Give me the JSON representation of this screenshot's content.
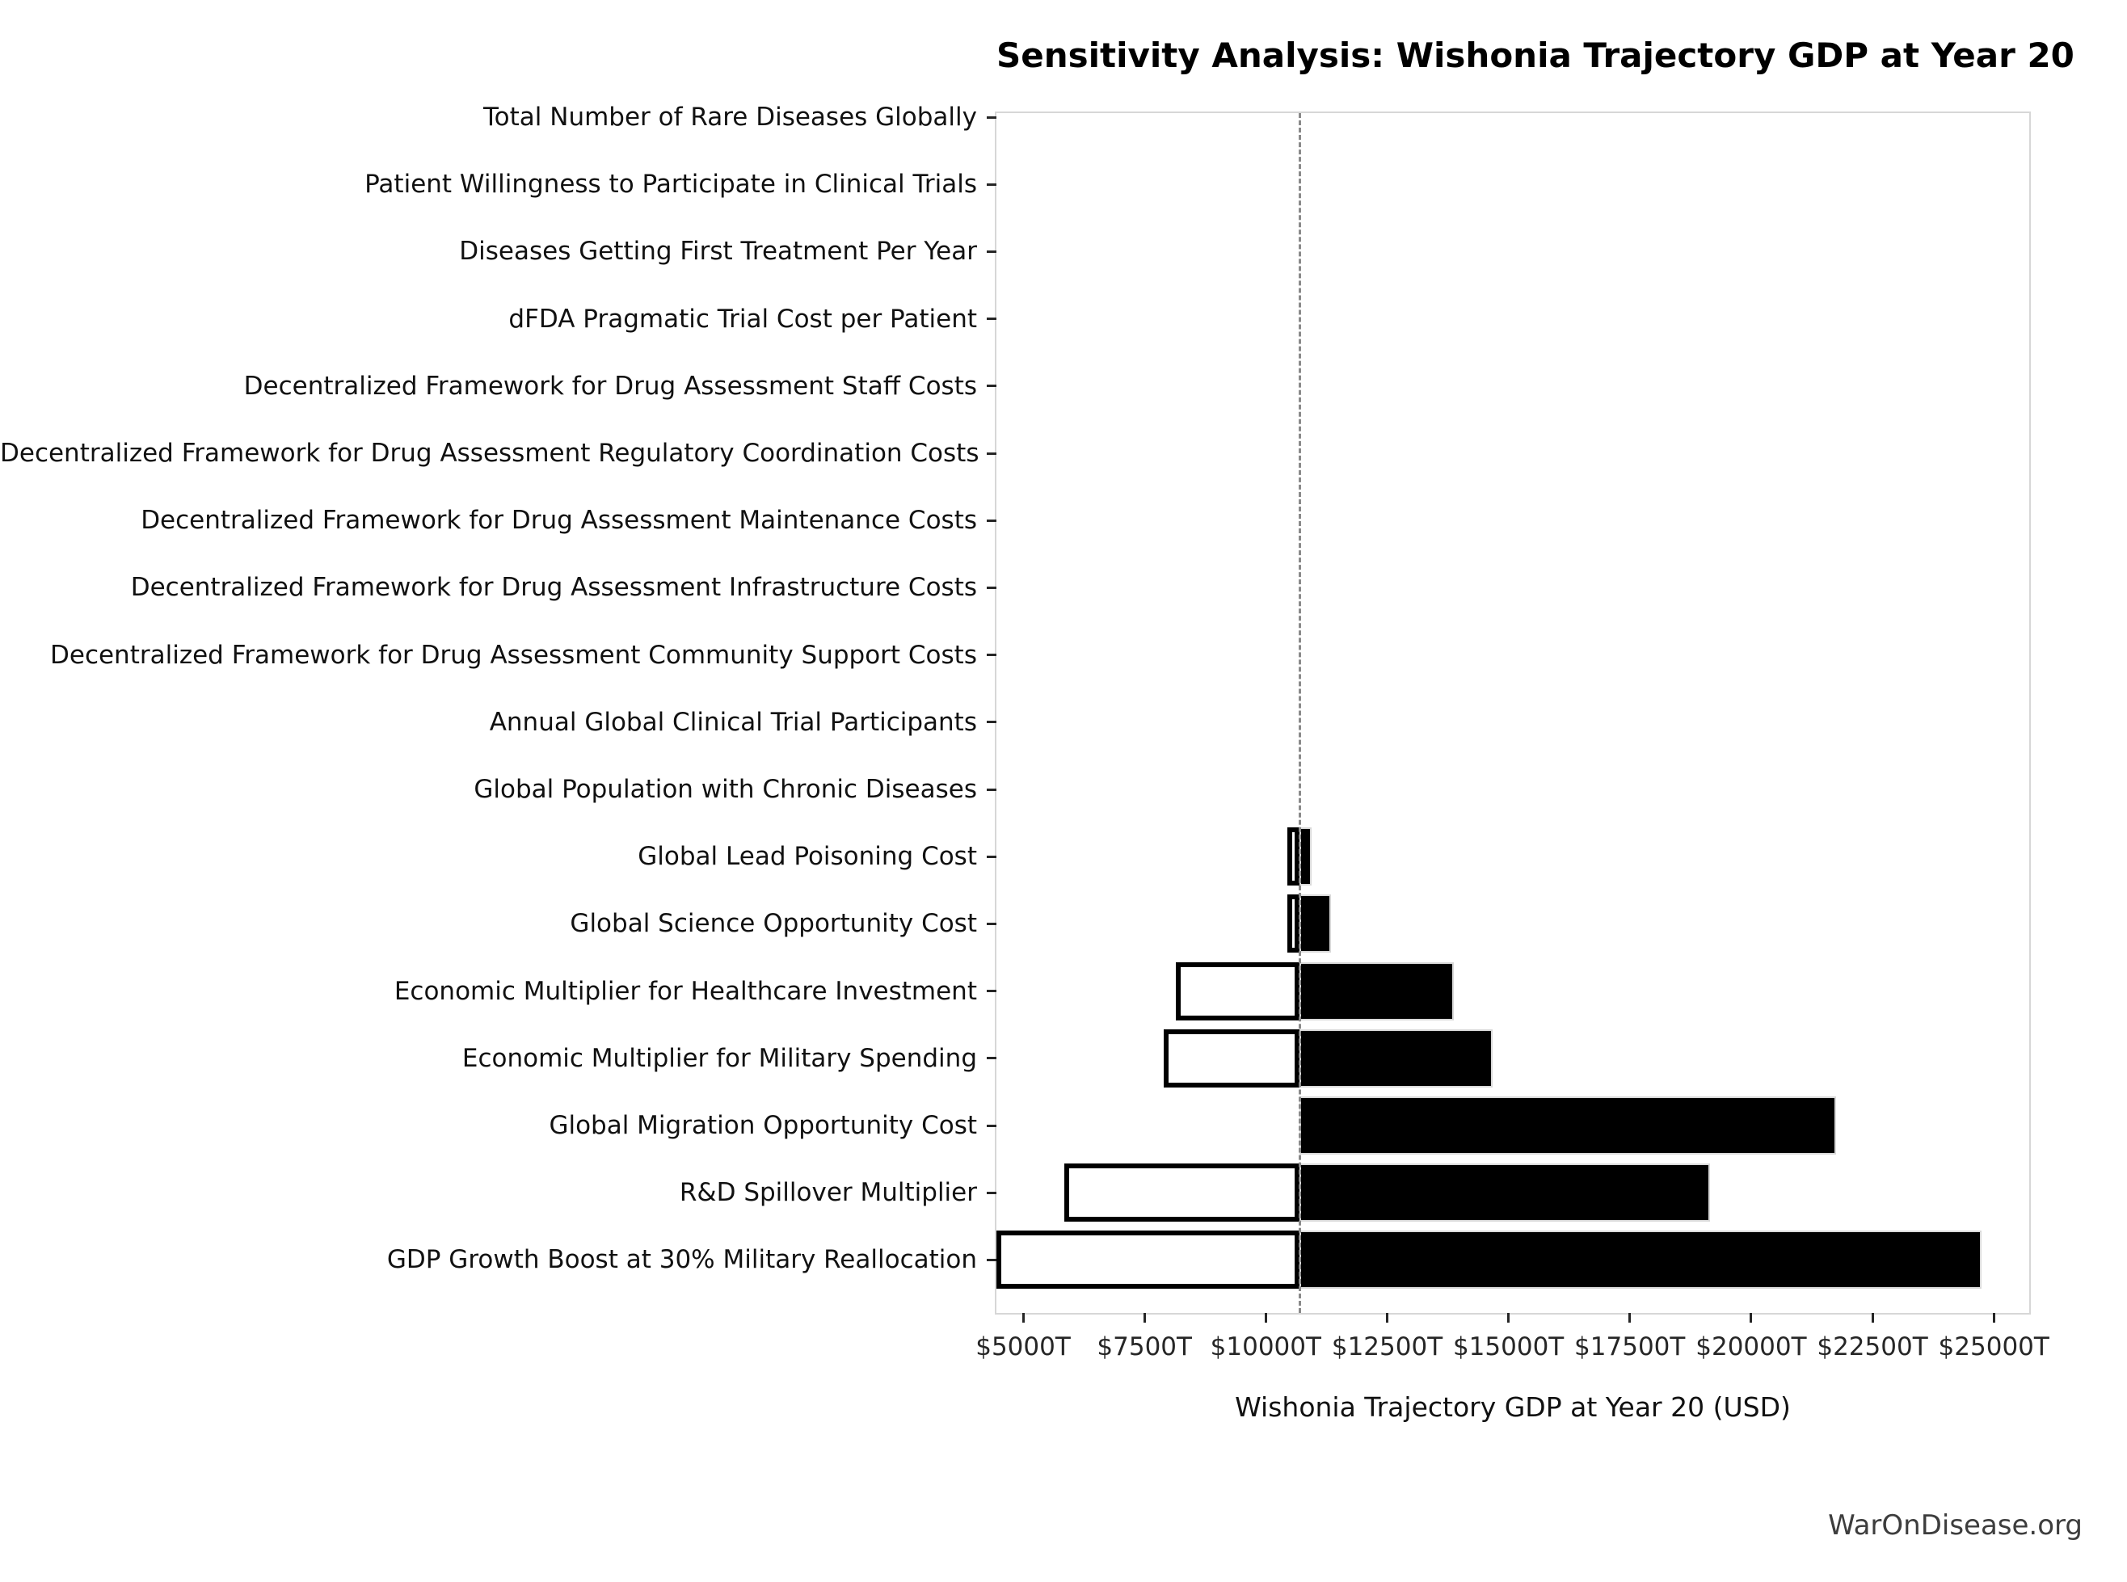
{
  "title": "Sensitivity Analysis: Wishonia Trajectory GDP at Year 20",
  "watermark": "WarOnDisease.org",
  "chart_data": {
    "type": "bar",
    "subtype": "tornado-sensitivity",
    "orientation": "horizontal",
    "title": "Sensitivity Analysis: Wishonia Trajectory GDP at Year 20",
    "xlabel": "Wishonia Trajectory GDP at Year 20 (USD)",
    "ylabel": "",
    "unit": "trillion USD",
    "grid": false,
    "xlim": [
      4450,
      25730
    ],
    "baseline": {
      "value": 10700,
      "line_style": "dashed",
      "line_color": "#8a8a8a"
    },
    "x_ticks": [
      {
        "value": 5000,
        "label": "$5000T"
      },
      {
        "value": 7500,
        "label": "$7500T"
      },
      {
        "value": 10000,
        "label": "$10000T"
      },
      {
        "value": 12500,
        "label": "$12500T"
      },
      {
        "value": 15000,
        "label": "$15000T"
      },
      {
        "value": 17500,
        "label": "$17500T"
      },
      {
        "value": 20000,
        "label": "$20000T"
      },
      {
        "value": 22500,
        "label": "$22500T"
      },
      {
        "value": 25000,
        "label": "$25000T"
      }
    ],
    "bar_style": {
      "low_fill": "#ffffff",
      "low_border": "#000000",
      "high_fill": "#000000",
      "high_border": "#d9d9d9"
    },
    "rows": [
      {
        "label": "Total Number of Rare Diseases Globally",
        "low": 10700,
        "high": 10700
      },
      {
        "label": "Patient Willingness to Participate in Clinical Trials",
        "low": 10700,
        "high": 10700
      },
      {
        "label": "Diseases Getting First Treatment Per Year",
        "low": 10700,
        "high": 10700
      },
      {
        "label": "dFDA Pragmatic Trial Cost per Patient",
        "low": 10700,
        "high": 10700
      },
      {
        "label": "Decentralized Framework for Drug Assessment Staff Costs",
        "low": 10700,
        "high": 10700
      },
      {
        "label": "Decentralized Framework for Drug Assessment Regulatory Coordination Costs",
        "low": 10700,
        "high": 10700
      },
      {
        "label": "Decentralized Framework for Drug Assessment Maintenance Costs",
        "low": 10700,
        "high": 10700
      },
      {
        "label": "Decentralized Framework for Drug Assessment Infrastructure Costs",
        "low": 10700,
        "high": 10700
      },
      {
        "label": "Decentralized Framework for Drug Assessment Community Support Costs",
        "low": 10700,
        "high": 10700
      },
      {
        "label": "Annual Global Clinical Trial Participants",
        "low": 10700,
        "high": 10700
      },
      {
        "label": "Global Population with Chronic Diseases",
        "low": 10700,
        "high": 10700
      },
      {
        "label": "Global Lead Poisoning Cost",
        "low": 10450,
        "high": 10950
      },
      {
        "label": "Global Science Opportunity Cost",
        "low": 10450,
        "high": 11350
      },
      {
        "label": "Economic Multiplier for Healthcare Investment",
        "low": 8150,
        "high": 13870
      },
      {
        "label": "Economic Multiplier for Military Spending",
        "low": 7900,
        "high": 14670
      },
      {
        "label": "Global Migration Opportunity Cost",
        "low": 10700,
        "high": 21750
      },
      {
        "label": "R&D Spillover Multiplier",
        "low": 5850,
        "high": 19150
      },
      {
        "label": "GDP Growth Boost at 30% Military Reallocation",
        "low": 4450,
        "high": 24750
      }
    ]
  }
}
